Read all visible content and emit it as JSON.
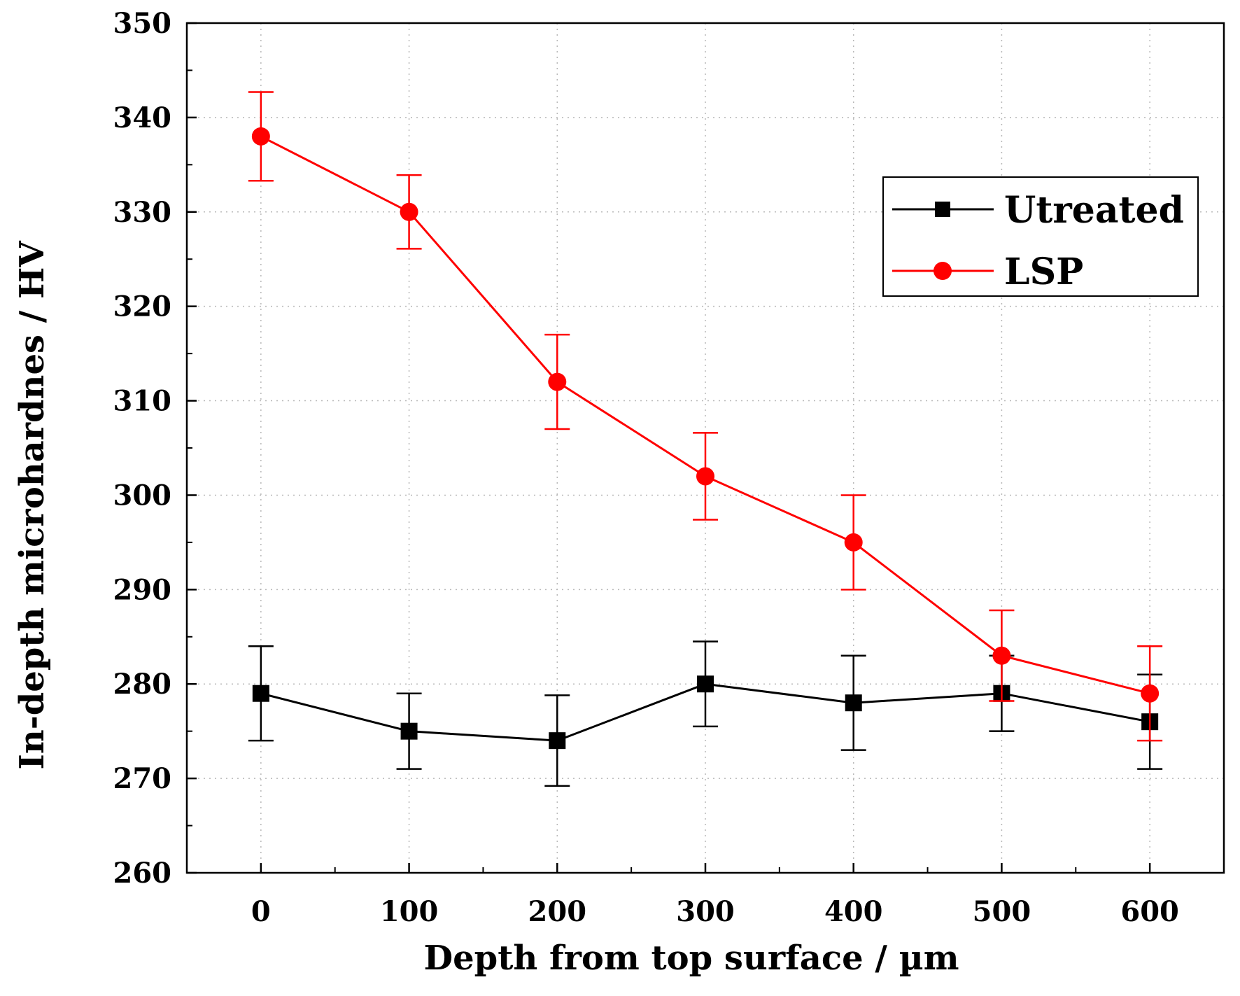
{
  "chart_data": {
    "type": "line",
    "xlabel": "Depth from top surface / µm",
    "ylabel": "In-depth microhardnes / HV",
    "xlim": [
      -50,
      650
    ],
    "ylim": [
      260,
      350
    ],
    "x_ticks": [
      0,
      100,
      200,
      300,
      400,
      500,
      600
    ],
    "y_ticks": [
      260,
      270,
      280,
      290,
      300,
      310,
      320,
      330,
      340,
      350
    ],
    "grid": true,
    "legend_position": "top-right",
    "x": [
      0,
      100,
      200,
      300,
      400,
      500,
      600
    ],
    "series": [
      {
        "name": "Utreated",
        "color": "#000000",
        "marker": "square",
        "values": [
          279,
          275,
          274,
          280,
          278,
          279,
          276
        ],
        "errors": [
          5,
          4,
          4.8,
          4.5,
          5,
          4,
          5
        ]
      },
      {
        "name": "LSP",
        "color": "#ff0000",
        "marker": "circle",
        "values": [
          338,
          330,
          312,
          302,
          295,
          283,
          279
        ],
        "errors": [
          4.7,
          3.9,
          5,
          4.6,
          5,
          4.8,
          5
        ]
      }
    ]
  }
}
